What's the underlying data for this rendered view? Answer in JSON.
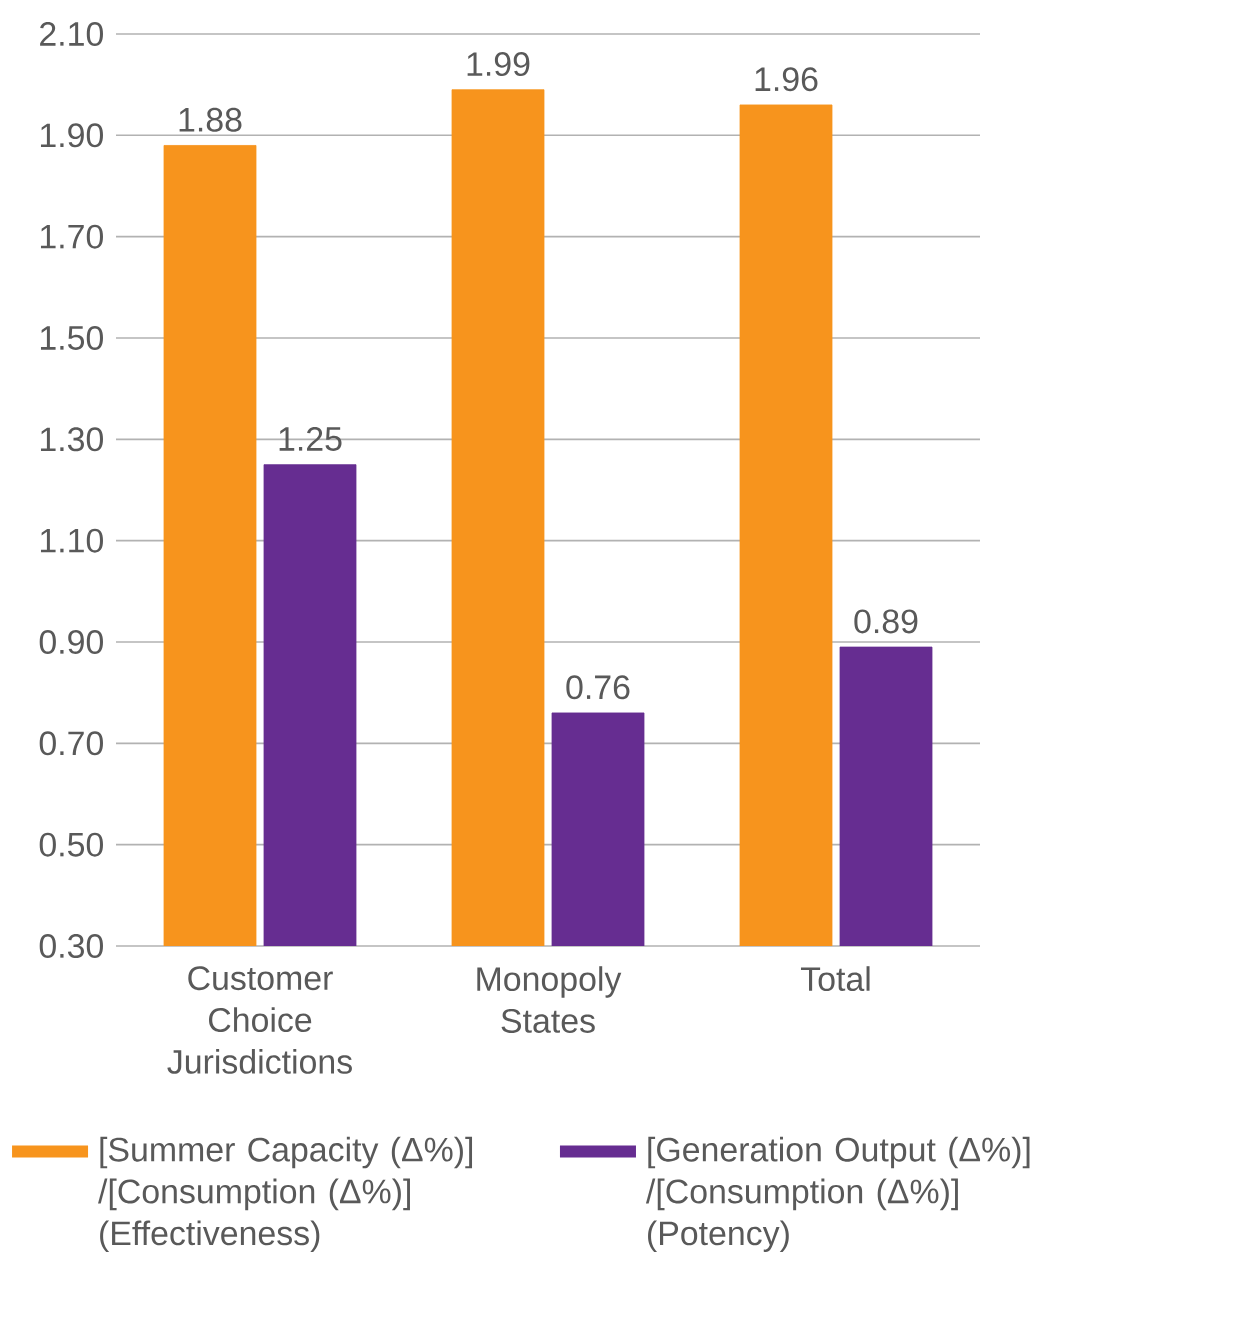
{
  "chart_data": {
    "type": "bar",
    "categories": [
      "Customer Choice Jurisdictions",
      "Monopoly States",
      "Total"
    ],
    "series": [
      {
        "name": "[Summer Capacity (Δ%)] /[Consumption (Δ%)] (Effectiveness)",
        "color": "#f7941d",
        "values": [
          1.88,
          1.99,
          1.96
        ]
      },
      {
        "name": "[Generation Output (Δ%)] /[Consumption (Δ%)] (Potency)",
        "color": "#662d91",
        "values": [
          1.25,
          0.76,
          0.89
        ]
      }
    ],
    "ylim": [
      0.3,
      2.1
    ],
    "yticks": [
      {
        "value": 0.3,
        "label": "0.30"
      },
      {
        "value": 0.5,
        "label": "0.50"
      },
      {
        "value": 0.7,
        "label": "0.70"
      },
      {
        "value": 0.9,
        "label": "0.90"
      },
      {
        "value": 1.1,
        "label": "1.10"
      },
      {
        "value": 1.3,
        "label": "1.30"
      },
      {
        "value": 1.5,
        "label": "1.50"
      },
      {
        "value": 1.7,
        "label": "1.70"
      },
      {
        "value": 1.9,
        "label": "1.90"
      },
      {
        "value": 2.1,
        "label": "2.10"
      }
    ],
    "grid": "y",
    "legend": "bottom",
    "data_labels": true
  }
}
